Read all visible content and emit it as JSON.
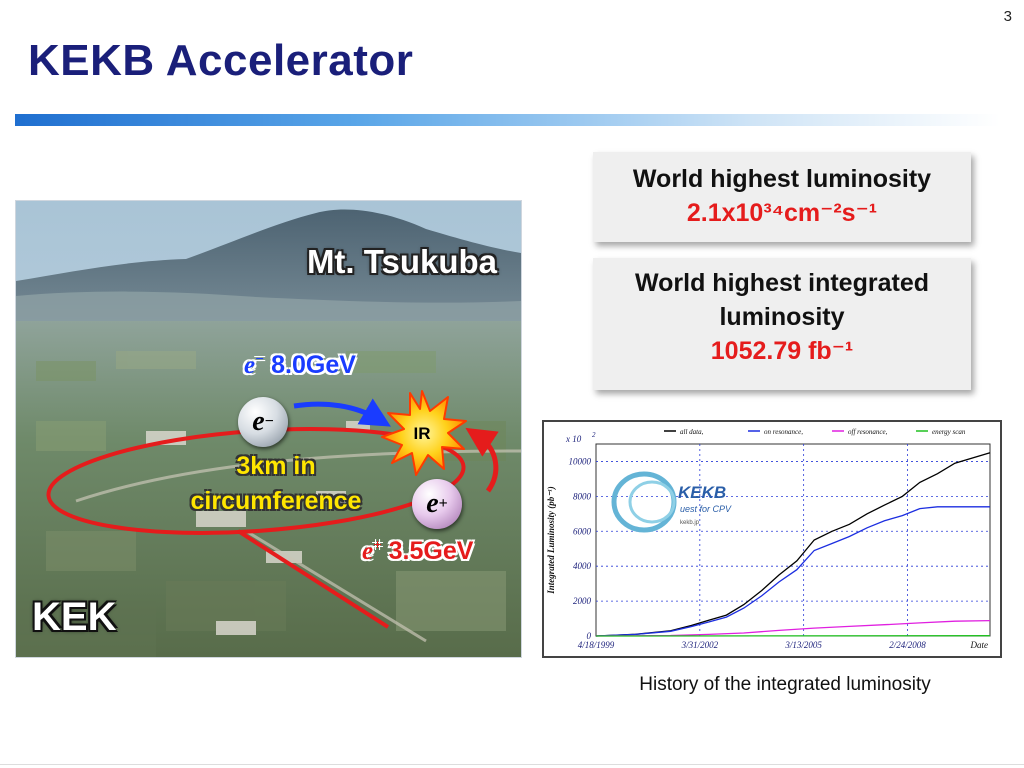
{
  "slide": {
    "number": "3",
    "title": "KEKB Accelerator"
  },
  "photo": {
    "mountain_label": "Mt. Tsukuba",
    "site_label": "KEK",
    "electron_energy": "8.0GeV",
    "positron_energy": "3.5GeV",
    "electron_symbol": "e",
    "electron_charge": "−",
    "positron_symbol": "e",
    "positron_charge": "+",
    "ring_label": "3km in circumference",
    "interaction_region": "IR",
    "colors": {
      "electron": "#1a3cff",
      "positron": "#e51c1c",
      "ring": "#e51c1c",
      "circumference": "#ffe600"
    }
  },
  "records": {
    "peak_title": "World highest luminosity",
    "peak_value": "2.1x10³⁴cm⁻²s⁻¹",
    "integrated_title": "World highest integrated luminosity",
    "integrated_value": "1052.79 fb⁻¹"
  },
  "chart_caption": "History of the integrated luminosity",
  "chart_data": {
    "type": "line",
    "title": "",
    "xlabel": "Date",
    "ylabel": "Integrated Luminosity (pb⁻¹)",
    "y_multiplier_label": "x 10",
    "y_multiplier_exp": "2",
    "x_tick_labels": [
      "4/18/1999",
      "3/31/2002",
      "3/13/2005",
      "2/24/2008"
    ],
    "x_range": [
      "1999-04-18",
      "2010-06-30"
    ],
    "ylim": [
      0,
      11000
    ],
    "y_ticks": [
      0,
      2000,
      4000,
      6000,
      8000,
      10000
    ],
    "grid": true,
    "legend_position": "top",
    "logo_text": "KEKB",
    "logo_subtitle": "uest for CPV",
    "logo_site": "kekb.jp",
    "series": [
      {
        "name": "all data,",
        "color": "#000000",
        "x": [
          "1999-04-18",
          "2000-06-01",
          "2001-06-01",
          "2002-01-01",
          "2002-07-01",
          "2003-01-01",
          "2003-07-01",
          "2004-01-01",
          "2004-07-01",
          "2005-01-01",
          "2005-07-01",
          "2006-01-01",
          "2006-07-01",
          "2007-01-01",
          "2007-07-01",
          "2008-01-01",
          "2008-07-01",
          "2009-01-01",
          "2009-07-01",
          "2010-06-30"
        ],
        "values": [
          0,
          100,
          300,
          600,
          900,
          1200,
          1800,
          2600,
          3500,
          4300,
          5500,
          6000,
          6400,
          7000,
          7500,
          8000,
          8800,
          9300,
          9900,
          10500
        ]
      },
      {
        "name": "on resonance,",
        "color": "#1c2ee0",
        "x": [
          "1999-04-18",
          "2000-06-01",
          "2001-06-01",
          "2002-01-01",
          "2002-07-01",
          "2003-01-01",
          "2003-07-01",
          "2004-01-01",
          "2004-07-01",
          "2005-01-01",
          "2005-07-01",
          "2006-01-01",
          "2006-07-01",
          "2007-01-01",
          "2007-07-01",
          "2008-01-01",
          "2008-07-01",
          "2009-01-01",
          "2010-06-30"
        ],
        "values": [
          0,
          90,
          270,
          540,
          800,
          1080,
          1600,
          2300,
          3100,
          3800,
          4900,
          5300,
          5700,
          6200,
          6600,
          6900,
          7300,
          7400,
          7400
        ]
      },
      {
        "name": "off resonance,",
        "color": "#e020e0",
        "x": [
          "1999-04-18",
          "2001-06-01",
          "2002-07-01",
          "2003-07-01",
          "2004-07-01",
          "2005-07-01",
          "2006-07-01",
          "2007-07-01",
          "2008-07-01",
          "2009-07-01",
          "2010-06-30"
        ],
        "values": [
          0,
          30,
          90,
          170,
          320,
          450,
          550,
          650,
          750,
          850,
          880
        ]
      },
      {
        "name": "energy scan",
        "color": "#20c020",
        "x": [
          "1999-04-18",
          "2010-06-30"
        ],
        "values": [
          0,
          20
        ]
      }
    ]
  }
}
